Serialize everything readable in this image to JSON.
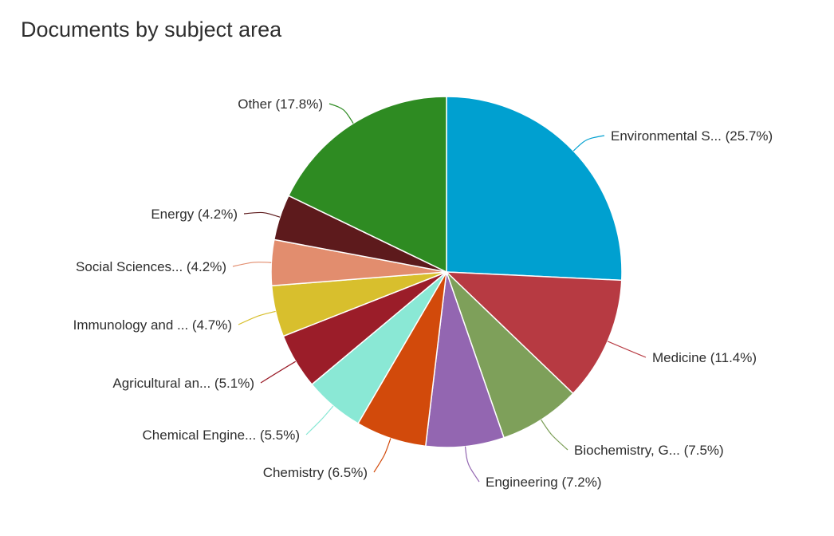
{
  "chart_data": {
    "type": "pie",
    "title": "Documents by subject area",
    "slices": [
      {
        "label": "Environmental S... (25.7%)",
        "category": "Environmental S...",
        "value": 25.7,
        "color": "#00a0d0"
      },
      {
        "label": "Medicine (11.4%)",
        "category": "Medicine",
        "value": 11.4,
        "color": "#b73a42"
      },
      {
        "label": "Biochemistry, G... (7.5%)",
        "category": "Biochemistry, G...",
        "value": 7.5,
        "color": "#7ea05a"
      },
      {
        "label": "Engineering (7.2%)",
        "category": "Engineering",
        "value": 7.2,
        "color": "#9366b1"
      },
      {
        "label": "Chemistry (6.5%)",
        "category": "Chemistry",
        "value": 6.5,
        "color": "#d24a0b"
      },
      {
        "label": "Chemical Engine... (5.5%)",
        "category": "Chemical Engine...",
        "value": 5.5,
        "color": "#8ae8d5"
      },
      {
        "label": "Agricultural an... (5.1%)",
        "category": "Agricultural an...",
        "value": 5.1,
        "color": "#9b1d29"
      },
      {
        "label": "Immunology and ... (4.7%)",
        "category": "Immunology and ...",
        "value": 4.7,
        "color": "#d8bf2d"
      },
      {
        "label": "Social Sciences... (4.2%)",
        "category": "Social Sciences...",
        "value": 4.2,
        "color": "#e28d6e"
      },
      {
        "label": "Energy (4.2%)",
        "category": "Energy",
        "value": 4.2,
        "color": "#5d1a1c"
      },
      {
        "label": "Other (17.8%)",
        "category": "Other",
        "value": 17.8,
        "color": "#2e8b22"
      }
    ],
    "start_angle": "12 o'clock",
    "direction": "clockwise",
    "legend": "none"
  }
}
